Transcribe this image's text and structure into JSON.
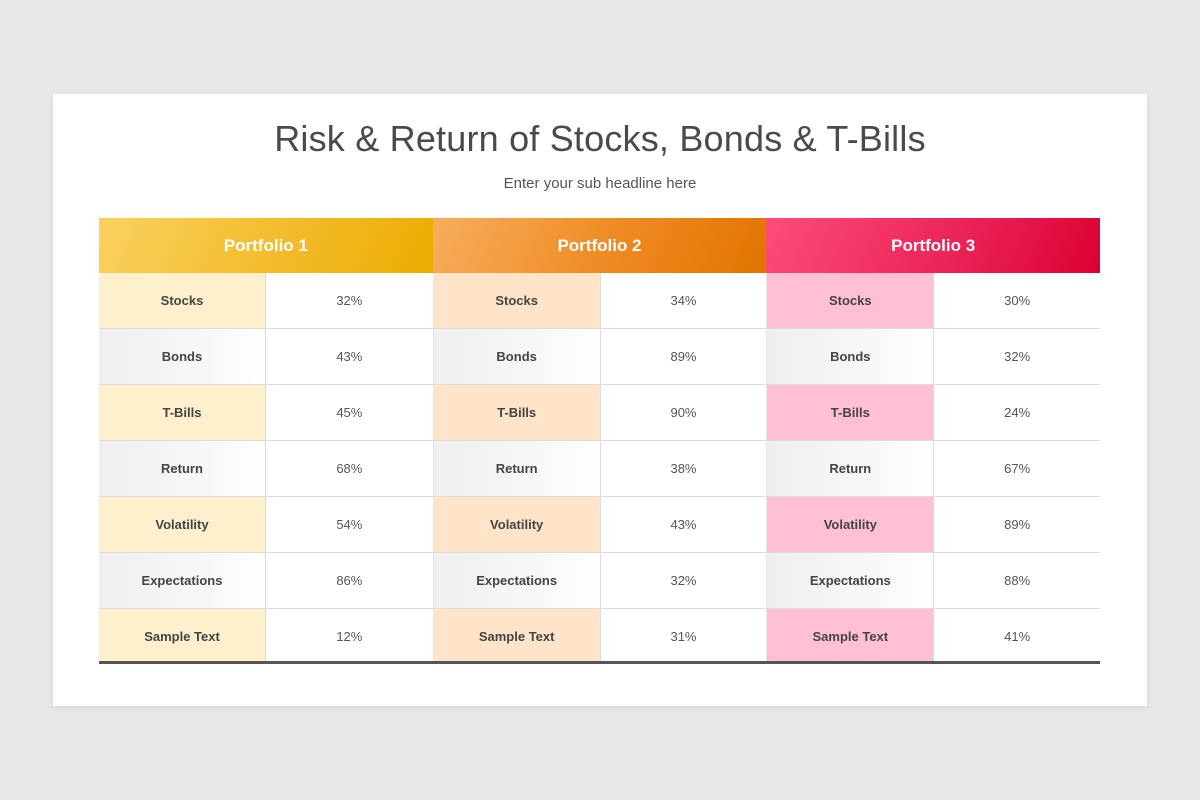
{
  "slide": {
    "title": "Risk & Return of Stocks, Bonds & T-Bills",
    "subtitle": "Enter your sub headline here"
  },
  "colors": {
    "portfolio_1": "#f3bb2a",
    "portfolio_2": "#ee8a22",
    "portfolio_3": "#ec2457",
    "portfolio_1_tint": "#fff0cd",
    "portfolio_2_tint": "#ffe4c9",
    "portfolio_3_tint": "#ffc1d1"
  },
  "table": {
    "portfolios": [
      {
        "name": "Portfolio 1",
        "rows": [
          {
            "label": "Stocks",
            "value": "32%"
          },
          {
            "label": "Bonds",
            "value": "43%"
          },
          {
            "label": "T-Bills",
            "value": "45%"
          },
          {
            "label": "Return",
            "value": "68%"
          },
          {
            "label": "Volatility",
            "value": "54%"
          },
          {
            "label": "Expectations",
            "value": "86%"
          },
          {
            "label": "Sample Text",
            "value": "12%"
          }
        ]
      },
      {
        "name": "Portfolio 2",
        "rows": [
          {
            "label": "Stocks",
            "value": "34%"
          },
          {
            "label": "Bonds",
            "value": "89%"
          },
          {
            "label": "T-Bills",
            "value": "90%"
          },
          {
            "label": "Return",
            "value": "38%"
          },
          {
            "label": "Volatility",
            "value": "43%"
          },
          {
            "label": "Expectations",
            "value": "32%"
          },
          {
            "label": "Sample Text",
            "value": "31%"
          }
        ]
      },
      {
        "name": "Portfolio 3",
        "rows": [
          {
            "label": "Stocks",
            "value": "30%"
          },
          {
            "label": "Bonds",
            "value": "32%"
          },
          {
            "label": "T-Bills",
            "value": "24%"
          },
          {
            "label": "Return",
            "value": "67%"
          },
          {
            "label": "Volatility",
            "value": "89%"
          },
          {
            "label": "Expectations",
            "value": "88%"
          },
          {
            "label": "Sample Text",
            "value": "41%"
          }
        ]
      }
    ]
  }
}
